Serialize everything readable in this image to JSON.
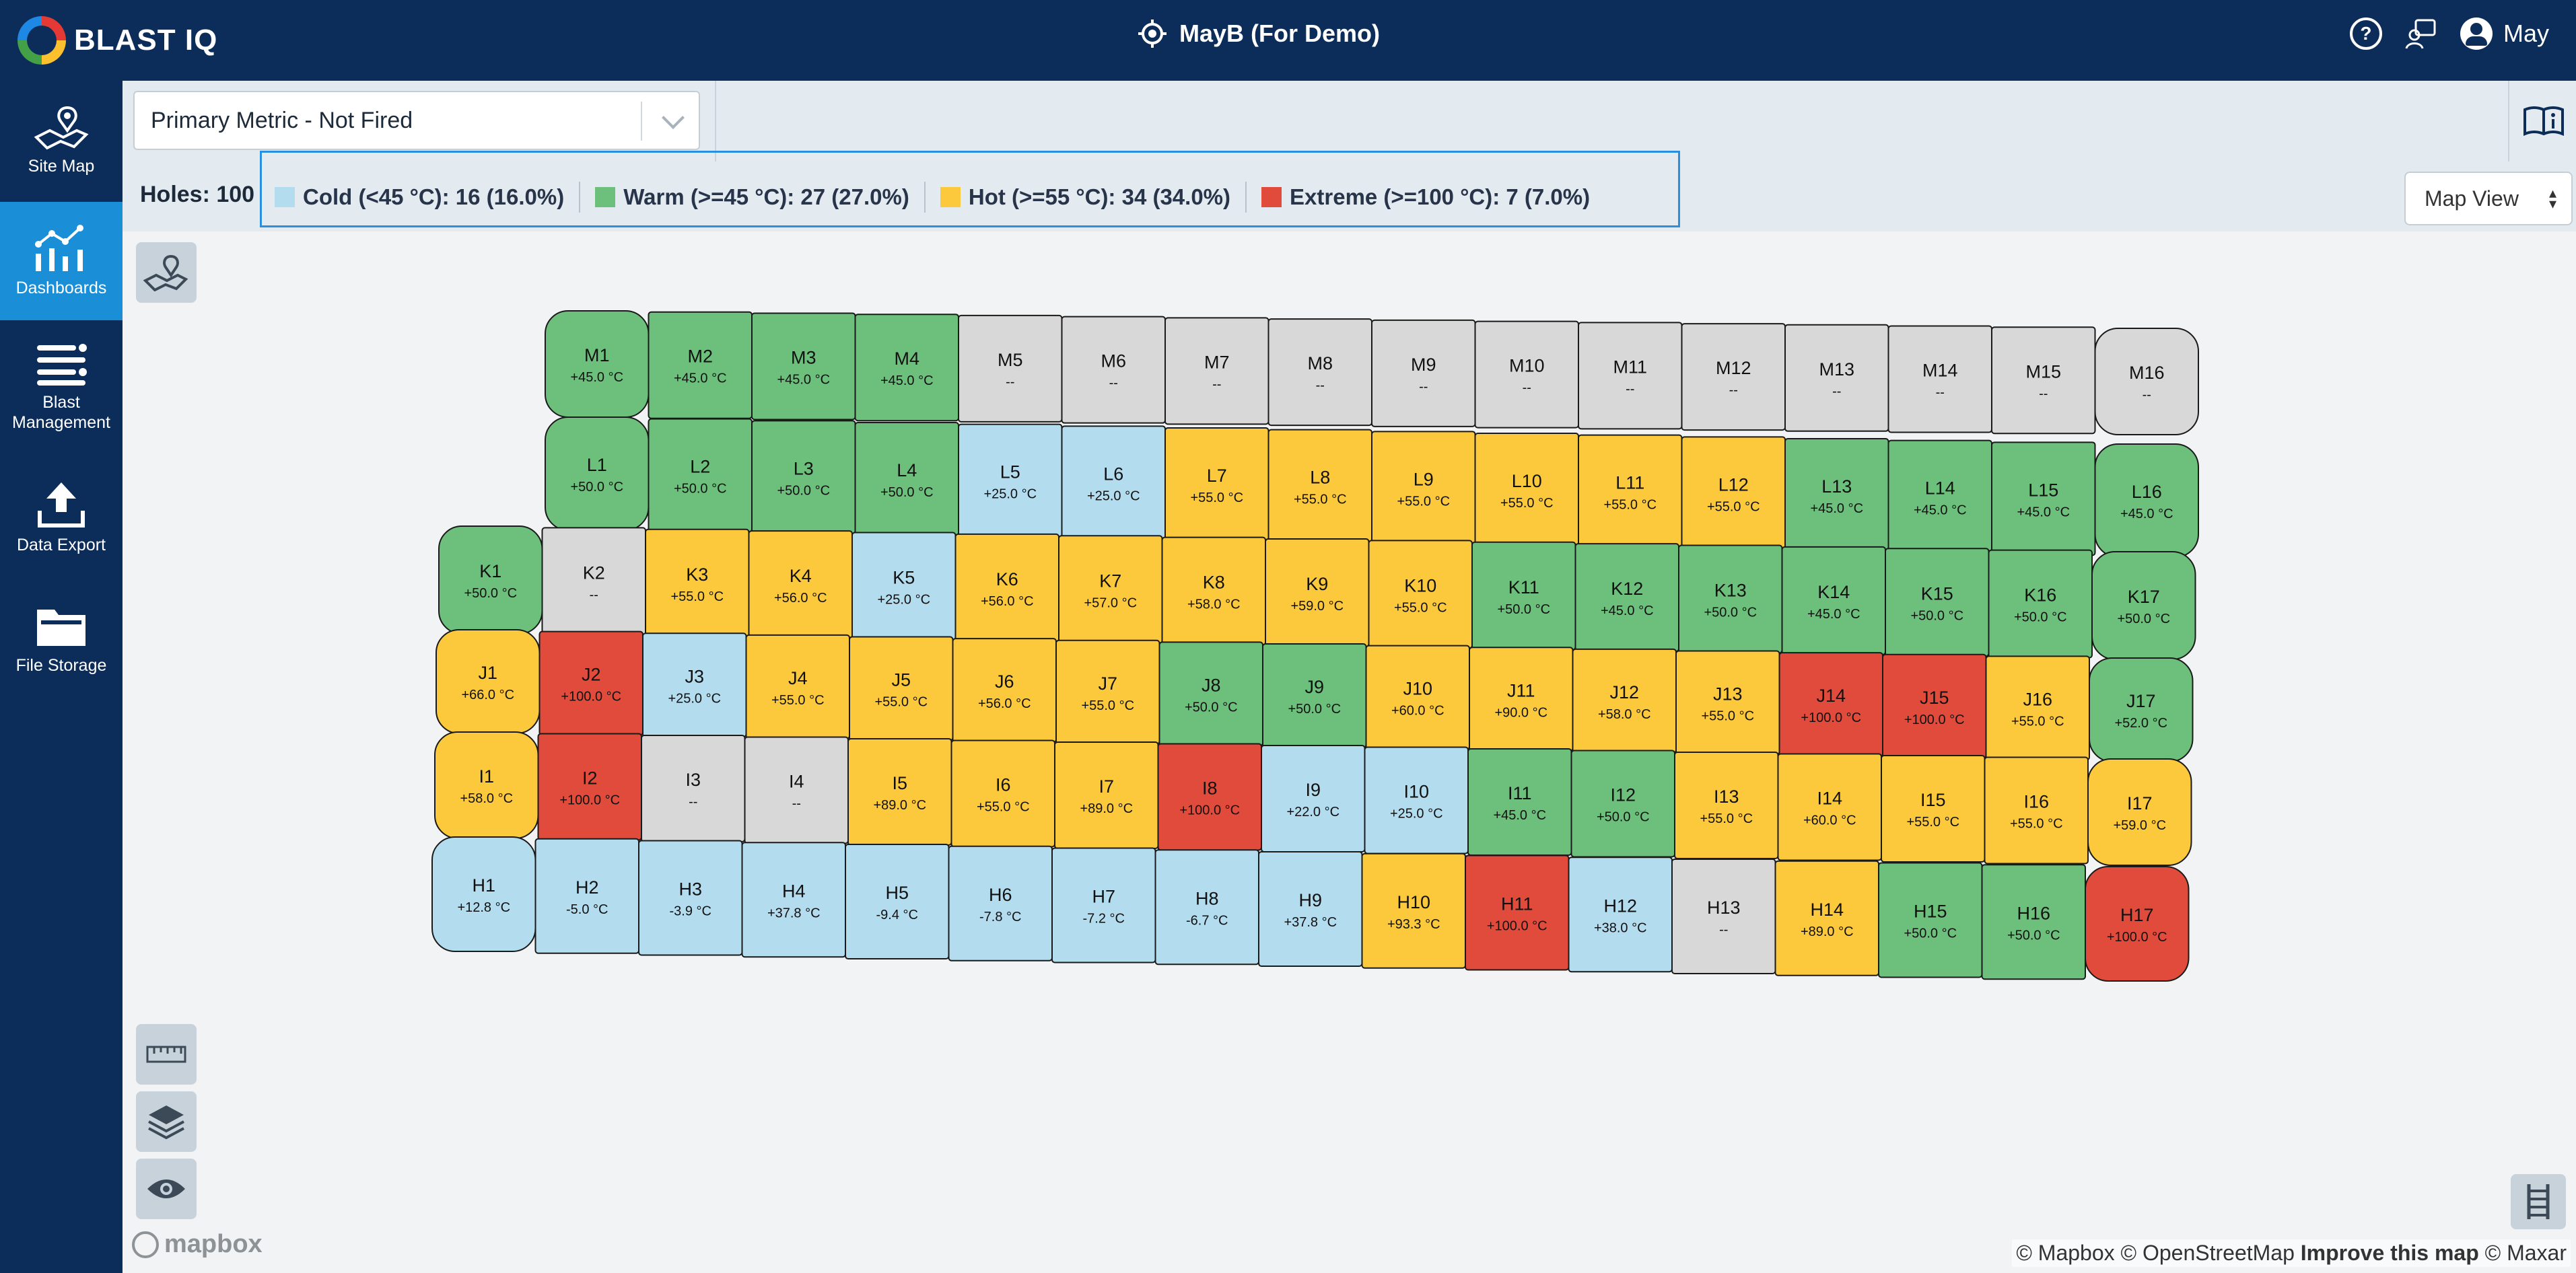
{
  "app": {
    "name": "BLAST IQ",
    "site_name": "MayB (For Demo)",
    "user_name": "May"
  },
  "sidebar": [
    {
      "label": "Site Map",
      "icon": "map-icon",
      "active": false
    },
    {
      "label": "Dashboards",
      "icon": "chart-icon",
      "active": true
    },
    {
      "label": "Blast Management",
      "icon": "list-icon",
      "active": false
    },
    {
      "label": "Data Export",
      "icon": "upload-icon",
      "active": false
    },
    {
      "label": "File Storage",
      "icon": "folder-icon",
      "active": false
    }
  ],
  "toolbar": {
    "metric_select": "Primary Metric - Not Fired"
  },
  "legend": {
    "holes": "Holes: 100",
    "items": [
      {
        "label": "Cold (<45 °C): 16 (16.0%)",
        "color": "#b3dcef"
      },
      {
        "label": "Warm (>=45 °C): 27 (27.0%)",
        "color": "#6cc07c"
      },
      {
        "label": "Hot (>=55 °C): 34 (34.0%)",
        "color": "#fdc93c"
      },
      {
        "label": "Extreme (>=100 °C): 7 (7.0%)",
        "color": "#e14b3b"
      }
    ],
    "map_view": "Map View"
  },
  "colors": {
    "C": "#b3dcef",
    "W": "#6cc07c",
    "H": "#fdc93c",
    "E": "#e14b3b",
    "N": "#d8d8d8"
  },
  "holes": {
    "M": [
      [
        "M1",
        "+45.0 °C",
        "W"
      ],
      [
        "M2",
        "+45.0 °C",
        "W"
      ],
      [
        "M3",
        "+45.0 °C",
        "W"
      ],
      [
        "M4",
        "+45.0 °C",
        "W"
      ],
      [
        "M5",
        "--",
        "N"
      ],
      [
        "M6",
        "--",
        "N"
      ],
      [
        "M7",
        "--",
        "N"
      ],
      [
        "M8",
        "--",
        "N"
      ],
      [
        "M9",
        "--",
        "N"
      ],
      [
        "M10",
        "--",
        "N"
      ],
      [
        "M11",
        "--",
        "N"
      ],
      [
        "M12",
        "--",
        "N"
      ],
      [
        "M13",
        "--",
        "N"
      ],
      [
        "M14",
        "--",
        "N"
      ],
      [
        "M15",
        "--",
        "N"
      ],
      [
        "M16",
        "--",
        "N"
      ]
    ],
    "L": [
      [
        "L1",
        "+50.0 °C",
        "W"
      ],
      [
        "L2",
        "+50.0 °C",
        "W"
      ],
      [
        "L3",
        "+50.0 °C",
        "W"
      ],
      [
        "L4",
        "+50.0 °C",
        "W"
      ],
      [
        "L5",
        "+25.0 °C",
        "C"
      ],
      [
        "L6",
        "+25.0 °C",
        "C"
      ],
      [
        "L7",
        "+55.0 °C",
        "H"
      ],
      [
        "L8",
        "+55.0 °C",
        "H"
      ],
      [
        "L9",
        "+55.0 °C",
        "H"
      ],
      [
        "L10",
        "+55.0 °C",
        "H"
      ],
      [
        "L11",
        "+55.0 °C",
        "H"
      ],
      [
        "L12",
        "+55.0 °C",
        "H"
      ],
      [
        "L13",
        "+45.0 °C",
        "W"
      ],
      [
        "L14",
        "+45.0 °C",
        "W"
      ],
      [
        "L15",
        "+45.0 °C",
        "W"
      ],
      [
        "L16",
        "+45.0 °C",
        "W"
      ]
    ],
    "K": [
      [
        "K1",
        "+50.0 °C",
        "W"
      ],
      [
        "K2",
        "--",
        "N"
      ],
      [
        "K3",
        "+55.0 °C",
        "H"
      ],
      [
        "K4",
        "+56.0 °C",
        "H"
      ],
      [
        "K5",
        "+25.0 °C",
        "C"
      ],
      [
        "K6",
        "+56.0 °C",
        "H"
      ],
      [
        "K7",
        "+57.0 °C",
        "H"
      ],
      [
        "K8",
        "+58.0 °C",
        "H"
      ],
      [
        "K9",
        "+59.0 °C",
        "H"
      ],
      [
        "K10",
        "+55.0 °C",
        "H"
      ],
      [
        "K11",
        "+50.0 °C",
        "W"
      ],
      [
        "K12",
        "+45.0 °C",
        "W"
      ],
      [
        "K13",
        "+50.0 °C",
        "W"
      ],
      [
        "K14",
        "+45.0 °C",
        "W"
      ],
      [
        "K15",
        "+50.0 °C",
        "W"
      ],
      [
        "K16",
        "+50.0 °C",
        "W"
      ],
      [
        "K17",
        "+50.0 °C",
        "W"
      ]
    ],
    "J": [
      [
        "J1",
        "+66.0 °C",
        "H"
      ],
      [
        "J2",
        "+100.0 °C",
        "E"
      ],
      [
        "J3",
        "+25.0 °C",
        "C"
      ],
      [
        "J4",
        "+55.0 °C",
        "H"
      ],
      [
        "J5",
        "+55.0 °C",
        "H"
      ],
      [
        "J6",
        "+56.0 °C",
        "H"
      ],
      [
        "J7",
        "+55.0 °C",
        "H"
      ],
      [
        "J8",
        "+50.0 °C",
        "W"
      ],
      [
        "J9",
        "+50.0 °C",
        "W"
      ],
      [
        "J10",
        "+60.0 °C",
        "H"
      ],
      [
        "J11",
        "+90.0 °C",
        "H"
      ],
      [
        "J12",
        "+58.0 °C",
        "H"
      ],
      [
        "J13",
        "+55.0 °C",
        "H"
      ],
      [
        "J14",
        "+100.0 °C",
        "E"
      ],
      [
        "J15",
        "+100.0 °C",
        "E"
      ],
      [
        "J16",
        "+55.0 °C",
        "H"
      ],
      [
        "J17",
        "+52.0 °C",
        "W"
      ]
    ],
    "I": [
      [
        "I1",
        "+58.0 °C",
        "H"
      ],
      [
        "I2",
        "+100.0 °C",
        "E"
      ],
      [
        "I3",
        "--",
        "N"
      ],
      [
        "I4",
        "--",
        "N"
      ],
      [
        "I5",
        "+89.0 °C",
        "H"
      ],
      [
        "I6",
        "+55.0 °C",
        "H"
      ],
      [
        "I7",
        "+89.0 °C",
        "H"
      ],
      [
        "I8",
        "+100.0 °C",
        "E"
      ],
      [
        "I9",
        "+22.0 °C",
        "C"
      ],
      [
        "I10",
        "+25.0 °C",
        "C"
      ],
      [
        "I11",
        "+45.0 °C",
        "W"
      ],
      [
        "I12",
        "+50.0 °C",
        "W"
      ],
      [
        "I13",
        "+55.0 °C",
        "H"
      ],
      [
        "I14",
        "+60.0 °C",
        "H"
      ],
      [
        "I15",
        "+55.0 °C",
        "H"
      ],
      [
        "I16",
        "+55.0 °C",
        "H"
      ],
      [
        "I17",
        "+59.0 °C",
        "H"
      ]
    ],
    "H": [
      [
        "H1",
        "+12.8 °C",
        "C"
      ],
      [
        "H2",
        "-5.0 °C",
        "C"
      ],
      [
        "H3",
        "-3.9 °C",
        "C"
      ],
      [
        "H4",
        "+37.8 °C",
        "C"
      ],
      [
        "H5",
        "-9.4 °C",
        "C"
      ],
      [
        "H6",
        "-7.8 °C",
        "C"
      ],
      [
        "H7",
        "-7.2 °C",
        "C"
      ],
      [
        "H8",
        "-6.7 °C",
        "C"
      ],
      [
        "H9",
        "+37.8 °C",
        "C"
      ],
      [
        "H10",
        "+93.3 °C",
        "H"
      ],
      [
        "H11",
        "+100.0 °C",
        "E"
      ],
      [
        "H12",
        "+38.0 °C",
        "C"
      ],
      [
        "H13",
        "--",
        "N"
      ],
      [
        "H14",
        "+89.0 °C",
        "H"
      ],
      [
        "H15",
        "+50.0 °C",
        "W"
      ],
      [
        "H16",
        "+50.0 °C",
        "W"
      ],
      [
        "H17",
        "+100.0 °C",
        "E"
      ]
    ]
  },
  "attribution": {
    "mapbox": "© Mapbox",
    "osm": "© OpenStreetMap",
    "improve": "Improve this map",
    "maxar": "© Maxar"
  },
  "mapbox_logo": "mapbox"
}
